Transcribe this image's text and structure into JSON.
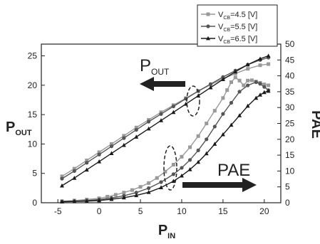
{
  "chart_data": {
    "type": "line",
    "x_label": {
      "main": "P",
      "sub": "IN"
    },
    "y_left_label": {
      "main": "P",
      "sub": "OUT"
    },
    "y_right_label": "PAE",
    "xlim": [
      -7,
      22
    ],
    "y_left_lim": [
      0,
      27
    ],
    "y_right_lim": [
      0,
      50
    ],
    "x_ticks": [
      -5,
      0,
      5,
      10,
      15,
      20
    ],
    "y_left_ticks": [
      0,
      5,
      10,
      15,
      20,
      25
    ],
    "y_right_ticks": [
      0,
      5,
      10,
      15,
      20,
      25,
      30,
      35,
      40,
      45,
      50
    ],
    "annotations": [
      {
        "main": "P",
        "sub": "OUT",
        "points_to": "left axis"
      },
      {
        "main": "PAE",
        "sub": "",
        "points_to": "right axis"
      }
    ],
    "legend_position": "top-right",
    "series": [
      {
        "name": "V_CB=4.5 [V]",
        "legend": {
          "pre": "V",
          "sub": "CB",
          "post": "=4.5 [V]"
        },
        "color": "#999999",
        "marker": "square",
        "pout": [
          [
            -4.5,
            4.5
          ],
          [
            -3,
            5.8
          ],
          [
            -1.5,
            7.2
          ],
          [
            0,
            8.6
          ],
          [
            1.5,
            10
          ],
          [
            3,
            11.4
          ],
          [
            4.5,
            12.8
          ],
          [
            6,
            14.1
          ],
          [
            7.5,
            15.4
          ],
          [
            9,
            16.6
          ],
          [
            10.5,
            17.8
          ],
          [
            12,
            19
          ],
          [
            13.5,
            20.1
          ],
          [
            15,
            21.1
          ],
          [
            16.5,
            22
          ],
          [
            18,
            22.8
          ],
          [
            19.5,
            23.4
          ],
          [
            20.5,
            23.6
          ]
        ],
        "pae": [
          [
            -4.5,
            0.5
          ],
          [
            -3,
            0.7
          ],
          [
            -1.5,
            1
          ],
          [
            0,
            1.4
          ],
          [
            1,
            1.9
          ],
          [
            2,
            2.5
          ],
          [
            3,
            3.2
          ],
          [
            4,
            4
          ],
          [
            5,
            5
          ],
          [
            6,
            6.2
          ],
          [
            7,
            7.8
          ],
          [
            8,
            9.8
          ],
          [
            9,
            12
          ],
          [
            10,
            14.5
          ],
          [
            11,
            17.5
          ],
          [
            12,
            21
          ],
          [
            13,
            25
          ],
          [
            14,
            29
          ],
          [
            15,
            33
          ],
          [
            15.5,
            35.5
          ],
          [
            16,
            38
          ],
          [
            16.5,
            39.5
          ],
          [
            17,
            38.5
          ],
          [
            17.5,
            37
          ],
          [
            18,
            38.5
          ],
          [
            18.5,
            38.6
          ],
          [
            19,
            38.2
          ],
          [
            19.5,
            37.8
          ],
          [
            20,
            37.3
          ],
          [
            20.5,
            37
          ]
        ]
      },
      {
        "name": "V_CB=5.5 [V]",
        "legend": {
          "pre": "V",
          "sub": "CB",
          "post": "=5.5 [V]"
        },
        "color": "#555555",
        "marker": "circle",
        "pout": [
          [
            -4.5,
            4.1
          ],
          [
            -3,
            5.4
          ],
          [
            -1.5,
            6.8
          ],
          [
            0,
            8.2
          ],
          [
            1.5,
            9.6
          ],
          [
            3,
            11
          ],
          [
            4.5,
            12.4
          ],
          [
            6,
            13.8
          ],
          [
            7.5,
            15.1
          ],
          [
            9,
            16.4
          ],
          [
            10.5,
            17.7
          ],
          [
            12,
            19
          ],
          [
            13.5,
            20.2
          ],
          [
            15,
            21.4
          ],
          [
            16.5,
            22.5
          ],
          [
            18,
            23.5
          ],
          [
            19.5,
            24.3
          ],
          [
            20.5,
            24.7
          ]
        ],
        "pae": [
          [
            -4.5,
            0.4
          ],
          [
            -3,
            0.5
          ],
          [
            -1.5,
            0.7
          ],
          [
            0,
            1
          ],
          [
            1.5,
            1.5
          ],
          [
            3,
            2.2
          ],
          [
            4.5,
            3.2
          ],
          [
            6,
            4.6
          ],
          [
            7.5,
            6.5
          ],
          [
            9,
            9
          ],
          [
            10,
            11
          ],
          [
            11,
            13.5
          ],
          [
            12,
            16.5
          ],
          [
            13,
            20
          ],
          [
            14,
            24
          ],
          [
            15,
            28
          ],
          [
            16,
            31.5
          ],
          [
            17,
            35
          ],
          [
            18,
            37
          ],
          [
            19,
            38
          ],
          [
            19.5,
            37.5
          ],
          [
            20,
            36.5
          ],
          [
            20.5,
            35.5
          ]
        ]
      },
      {
        "name": "V_CB=6.5 [V]",
        "legend": {
          "pre": "V",
          "sub": "CB",
          "post": "=6.5 [V]"
        },
        "color": "#1a1a1a",
        "marker": "triangle",
        "pout": [
          [
            -4.5,
            2.9
          ],
          [
            -3,
            4.2
          ],
          [
            -1.5,
            5.6
          ],
          [
            0,
            7
          ],
          [
            1.5,
            8.4
          ],
          [
            3,
            9.8
          ],
          [
            4.5,
            11.2
          ],
          [
            6,
            12.6
          ],
          [
            7.5,
            14
          ],
          [
            9,
            15.4
          ],
          [
            10.5,
            16.8
          ],
          [
            12,
            18.2
          ],
          [
            13.5,
            19.6
          ],
          [
            15,
            21
          ],
          [
            16.5,
            22.3
          ],
          [
            18,
            23.5
          ],
          [
            19.5,
            24.5
          ],
          [
            20.5,
            25
          ]
        ],
        "pae": [
          [
            -4.5,
            0.3
          ],
          [
            -3,
            0.4
          ],
          [
            -1.5,
            0.5
          ],
          [
            0,
            0.7
          ],
          [
            1.5,
            1.1
          ],
          [
            3,
            1.6
          ],
          [
            4.5,
            2.3
          ],
          [
            6,
            3.3
          ],
          [
            7.5,
            4.8
          ],
          [
            9,
            6.8
          ],
          [
            10,
            8.5
          ],
          [
            11,
            10.5
          ],
          [
            12,
            12.8
          ],
          [
            13,
            15.5
          ],
          [
            14,
            18.5
          ],
          [
            15,
            21.5
          ],
          [
            16,
            24.5
          ],
          [
            17,
            27.5
          ],
          [
            18,
            30.5
          ],
          [
            19,
            33
          ],
          [
            19.5,
            34
          ],
          [
            20,
            34.8
          ],
          [
            20.5,
            35.2
          ]
        ]
      }
    ]
  }
}
